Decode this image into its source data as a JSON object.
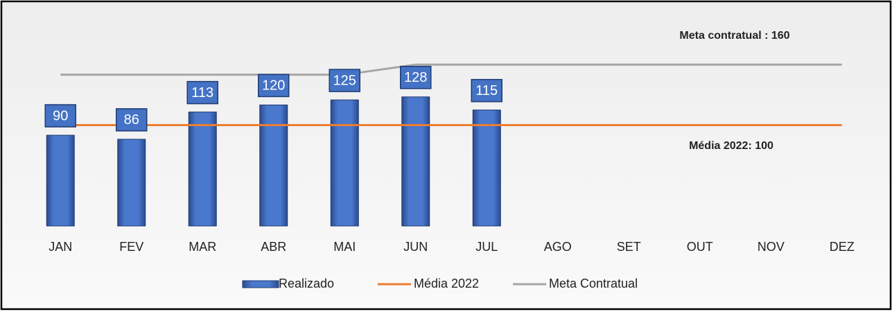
{
  "chart_data": {
    "type": "bar",
    "categories": [
      "JAN",
      "FEV",
      "MAR",
      "ABR",
      "MAI",
      "JUN",
      "JUL",
      "AGO",
      "SET",
      "OUT",
      "NOV",
      "DEZ"
    ],
    "series": [
      {
        "name": "Realizado",
        "type": "bar",
        "color": "#4472c4",
        "values": [
          90,
          86,
          113,
          120,
          125,
          128,
          115,
          null,
          null,
          null,
          null,
          null
        ]
      },
      {
        "name": "Média 2022",
        "type": "line",
        "color": "#ed7d31",
        "values": [
          100,
          100,
          100,
          100,
          100,
          100,
          100,
          100,
          100,
          100,
          100,
          100
        ]
      },
      {
        "name": "Meta Contratual",
        "type": "line",
        "color": "#a5a5a5",
        "values": [
          150,
          150,
          150,
          150,
          150,
          160,
          160,
          160,
          160,
          160,
          160,
          160
        ]
      }
    ],
    "annotations": [
      "Meta contratual : 160",
      "Média 2022: 100"
    ],
    "ylim": [
      0,
      200
    ],
    "legend": "bottom"
  }
}
